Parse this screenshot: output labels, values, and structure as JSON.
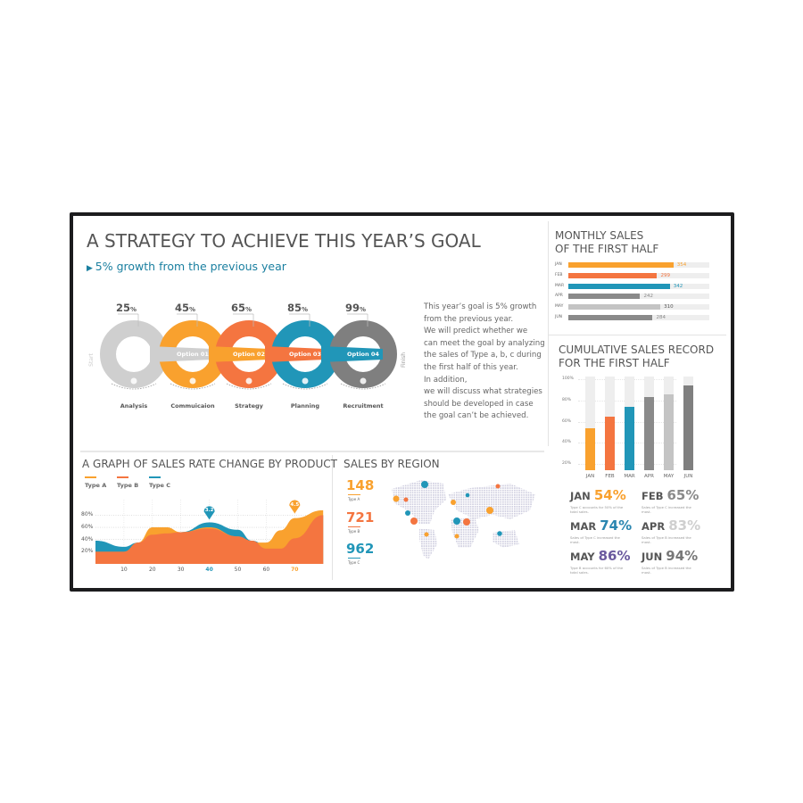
{
  "header": {
    "title": "A STRATEGY TO ACHIEVE THIS YEAR’S GOAL",
    "subtitle": "5% growth from the previous year"
  },
  "strategy": {
    "start": "Start",
    "finish": "Finish",
    "pct_sign": "%",
    "steps": [
      {
        "pct": "25",
        "option": "",
        "label": "Analysis",
        "color": "#cfcfcf",
        "icon": "money-bag-icon"
      },
      {
        "pct": "45",
        "option": "Option 01",
        "label": "Commuicaion",
        "color": "#f9a12e",
        "icon": "flask-icon"
      },
      {
        "pct": "65",
        "option": "Option 02",
        "label": "Strategy",
        "color": "#f47540",
        "icon": "clock-icon"
      },
      {
        "pct": "85",
        "option": "Option 03",
        "label": "Planning",
        "color": "#2196b8",
        "icon": "calendar-icon"
      },
      {
        "pct": "99",
        "option": "Option 04",
        "label": "Recruitment",
        "color": "#7f7f7f",
        "icon": "lightbulb-icon"
      }
    ],
    "paragraph": [
      "This year’s goal is 5% growth",
      "from the previous year.",
      "We will predict whether we",
      "can meet the goal by analyzing",
      "the sales of Type a, b, c during",
      "the first half of this year.",
      "In addition,",
      "we will discuss what strategies",
      "should be developed in case",
      "the goal can’t be achieved."
    ]
  },
  "monthly": {
    "title1": "MONTHLY SALES",
    "title2": "OF THE FIRST HALF",
    "max": 475,
    "rows": [
      {
        "m": "JAN",
        "v": 354,
        "c": "#f9a12e"
      },
      {
        "m": "FEB",
        "v": 299,
        "c": "#f47540"
      },
      {
        "m": "MAR",
        "v": 342,
        "c": "#2196b8"
      },
      {
        "m": "APR",
        "v": 242,
        "c": "#8a8a8a"
      },
      {
        "m": "MAY",
        "v": 310,
        "c": "#c4c4c4"
      },
      {
        "m": "JUN",
        "v": 284,
        "c": "#8a8a8a"
      }
    ]
  },
  "cumulative": {
    "title1": "CUMULATIVE SALES RECORD",
    "title2": "FOR THE FIRST HALF",
    "yticks": [
      "100%",
      "80%",
      "60%",
      "40%",
      "20%"
    ],
    "bars": [
      {
        "m": "JAN",
        "v": 54,
        "c": "#f9a12e"
      },
      {
        "m": "FEB",
        "v": 65,
        "c": "#f47540"
      },
      {
        "m": "MAR",
        "v": 74,
        "c": "#2196b8"
      },
      {
        "m": "APR",
        "v": 83,
        "c": "#8a8a8a"
      },
      {
        "m": "MAY",
        "v": 86,
        "c": "#c4c4c4"
      },
      {
        "m": "JUN",
        "v": 94,
        "c": "#7f7f7f"
      }
    ],
    "stats": [
      {
        "m": "JAN",
        "p": "54%",
        "c": "#f9a12e",
        "note": "Type C accounts for 50% of the total sales."
      },
      {
        "m": "FEB",
        "p": "65%",
        "c": "#8a8a8a",
        "note": "Sales of Type C increased the most."
      },
      {
        "m": "MAR",
        "p": "74%",
        "c": "#2a86b0",
        "note": "Sales of Type C increased the most."
      },
      {
        "m": "APR",
        "p": "83%",
        "c": "#cfcfcf",
        "note": "Sales of Type B increased the most."
      },
      {
        "m": "MAY",
        "p": "86%",
        "c": "#6b5a9e",
        "note": "Type B accounts for 60% of the total sales."
      },
      {
        "m": "JUN",
        "p": "94%",
        "c": "#777777",
        "note": "Sales of Type B increased the most."
      }
    ]
  },
  "rate_chart": {
    "title": "A GRAPH OF SALES RATE CHANGE BY PRODUCT",
    "chart_data": {
      "type": "area",
      "x": [
        0,
        10,
        15,
        20,
        25,
        30,
        40,
        50,
        55,
        60,
        65,
        70,
        80
      ],
      "xticks": [
        "10",
        "20",
        "30",
        "40",
        "50",
        "60",
        "70"
      ],
      "yticks": [
        "80%",
        "60%",
        "40%",
        "20%"
      ],
      "series": [
        {
          "name": "Type C",
          "color": "#2196b8",
          "values": [
            38,
            28,
            35,
            48,
            52,
            52,
            68,
            56,
            38,
            30,
            32,
            42,
            80
          ]
        },
        {
          "name": "Type A",
          "color": "#f9a12e",
          "values": [
            20,
            20,
            35,
            60,
            60,
            52,
            60,
            45,
            35,
            35,
            55,
            75,
            88
          ]
        },
        {
          "name": "Type B",
          "color": "#f47540",
          "values": [
            20,
            20,
            35,
            48,
            50,
            52,
            58,
            45,
            38,
            25,
            25,
            42,
            80
          ]
        }
      ],
      "annotations": [
        {
          "x": 40,
          "label": "3.2",
          "color": "#2196b8"
        },
        {
          "x": 70,
          "label": "4.5",
          "color": "#f9a12e"
        }
      ]
    }
  },
  "region": {
    "title": "SALES BY REGION",
    "items": [
      {
        "v": "148",
        "t": "Type A",
        "c": "#f9a12e"
      },
      {
        "v": "721",
        "t": "Type B",
        "c": "#f47540"
      },
      {
        "v": "962",
        "t": "Type C",
        "c": "#2196b8"
      }
    ]
  }
}
